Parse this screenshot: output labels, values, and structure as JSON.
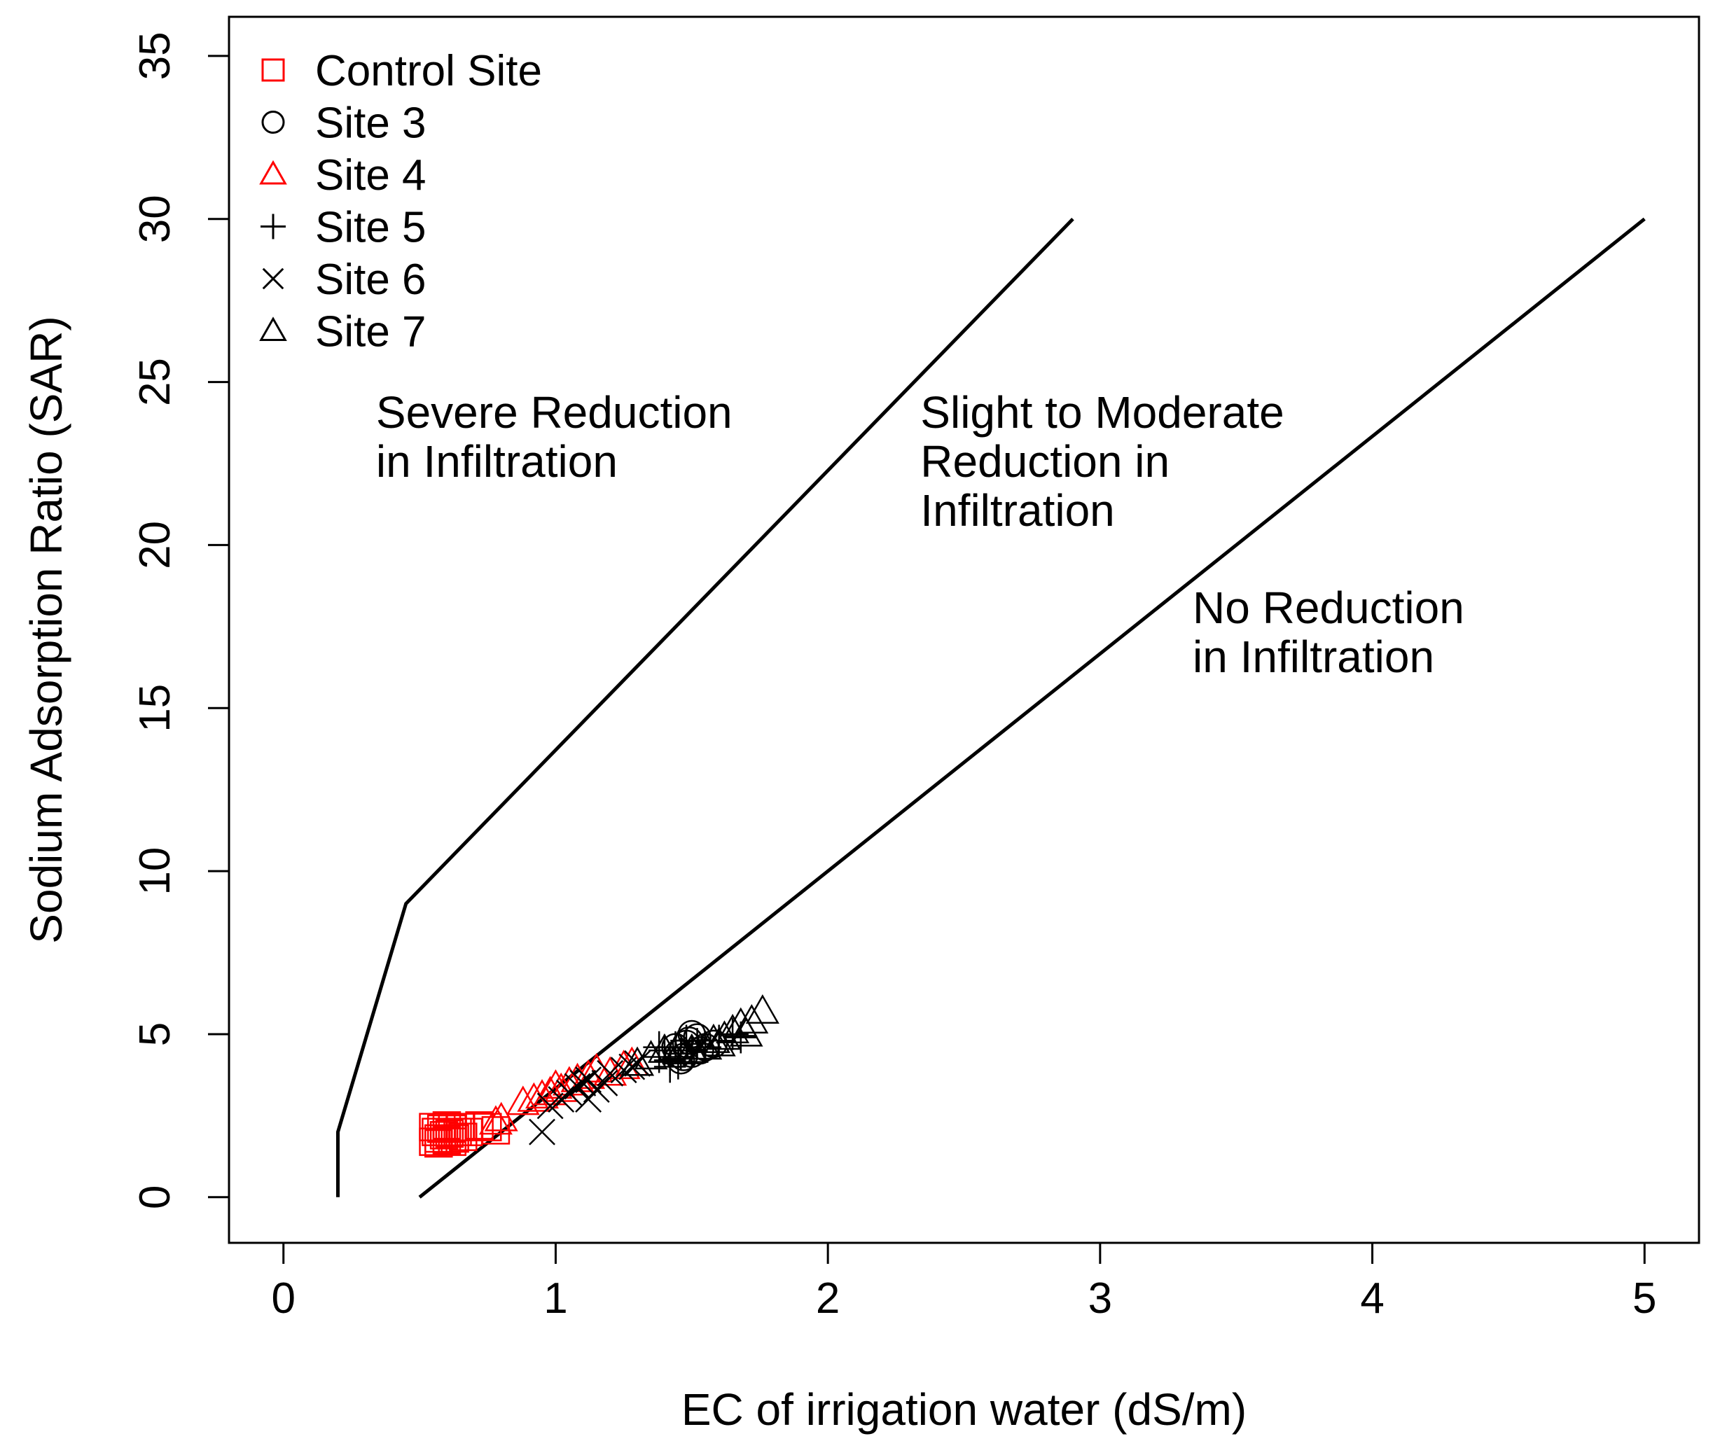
{
  "chart_data": {
    "type": "scatter",
    "title": "",
    "xlabel": "EC of irrigation water (dS/m)",
    "ylabel": "Sodium Adsorption Ratio (SAR)",
    "xlim": [
      -0.2,
      5.2
    ],
    "ylim": [
      -1.4,
      36.2
    ],
    "x_ticks": [
      0,
      1,
      2,
      3,
      4,
      5
    ],
    "y_ticks": [
      0,
      5,
      10,
      15,
      20,
      25,
      30,
      35
    ],
    "grid": false,
    "legend_position": "top-left",
    "colors": {
      "red": "#ff0000",
      "black": "#000000"
    },
    "boundaries": [
      {
        "name": "severe-boundary",
        "x": [
          0.2,
          0.2,
          0.45,
          2.9
        ],
        "y": [
          0,
          2,
          9,
          30
        ]
      },
      {
        "name": "no-reduction-boundary",
        "x": [
          0.5,
          5.0
        ],
        "y": [
          0,
          30
        ]
      }
    ],
    "annotations": [
      {
        "name": "severe-region",
        "lines": [
          "Severe Reduction",
          "in Infiltration"
        ],
        "x": 0.34,
        "y": 23.6
      },
      {
        "name": "moderate-region",
        "lines": [
          "Slight to Moderate",
          "Reduction in",
          "Infiltration"
        ],
        "x": 2.34,
        "y": 23.6
      },
      {
        "name": "none-region",
        "lines": [
          "No Reduction",
          "in Infiltration"
        ],
        "x": 3.34,
        "y": 17.6
      }
    ],
    "series": [
      {
        "name": "Control Site",
        "marker": "square",
        "color": "#ff0000",
        "points": [
          [
            0.55,
            1.7
          ],
          [
            0.56,
            2.0
          ],
          [
            0.57,
            1.8
          ],
          [
            0.58,
            2.1
          ],
          [
            0.59,
            1.9
          ],
          [
            0.6,
            1.75
          ],
          [
            0.6,
            2.2
          ],
          [
            0.61,
            1.95
          ],
          [
            0.62,
            2.1
          ],
          [
            0.63,
            1.8
          ],
          [
            0.64,
            2.0
          ],
          [
            0.65,
            2.15
          ],
          [
            0.66,
            1.85
          ],
          [
            0.68,
            2.0
          ],
          [
            0.55,
            2.15
          ],
          [
            0.57,
            1.65
          ],
          [
            0.72,
            2.2
          ],
          [
            0.75,
            2.15
          ],
          [
            0.78,
            2.05
          ],
          [
            0.62,
            1.7
          ]
        ]
      },
      {
        "name": "Site 3",
        "marker": "circle",
        "color": "#000000",
        "points": [
          [
            1.44,
            4.6
          ],
          [
            1.46,
            4.2
          ],
          [
            1.48,
            4.7
          ],
          [
            1.5,
            4.4
          ],
          [
            1.52,
            4.9
          ],
          [
            1.5,
            5.0
          ],
          [
            1.55,
            4.6
          ],
          [
            1.47,
            4.3
          ],
          [
            1.53,
            4.5
          ],
          [
            1.49,
            4.8
          ],
          [
            1.45,
            4.4
          ],
          [
            1.58,
            4.7
          ]
        ]
      },
      {
        "name": "Site 4",
        "marker": "triangle",
        "color": "#ff0000",
        "points": [
          [
            0.78,
            2.3
          ],
          [
            0.8,
            2.4
          ],
          [
            0.88,
            2.9
          ],
          [
            0.92,
            3.0
          ],
          [
            0.95,
            3.1
          ],
          [
            0.98,
            3.2
          ],
          [
            1.0,
            3.4
          ],
          [
            1.02,
            3.3
          ],
          [
            1.05,
            3.5
          ],
          [
            1.08,
            3.6
          ],
          [
            1.12,
            3.7
          ],
          [
            1.15,
            3.9
          ],
          [
            1.2,
            3.8
          ],
          [
            1.25,
            4.0
          ],
          [
            1.28,
            4.1
          ]
        ]
      },
      {
        "name": "Site 5",
        "marker": "plus",
        "color": "#000000",
        "points": [
          [
            1.38,
            4.3
          ],
          [
            1.4,
            4.5
          ],
          [
            1.42,
            4.2
          ],
          [
            1.44,
            4.6
          ],
          [
            1.46,
            4.4
          ],
          [
            1.48,
            4.8
          ],
          [
            1.5,
            4.5
          ],
          [
            1.52,
            4.7
          ],
          [
            1.42,
            4.0
          ],
          [
            1.45,
            4.1
          ],
          [
            1.38,
            4.6
          ],
          [
            1.55,
            4.6
          ],
          [
            1.6,
            4.8
          ],
          [
            1.65,
            5.0
          ],
          [
            1.68,
            4.9
          ]
        ]
      },
      {
        "name": "Site 6",
        "marker": "x",
        "color": "#000000",
        "points": [
          [
            0.95,
            2.0
          ],
          [
            0.98,
            2.8
          ],
          [
            1.02,
            3.0
          ],
          [
            1.05,
            3.2
          ],
          [
            1.08,
            3.4
          ],
          [
            1.1,
            3.5
          ],
          [
            1.12,
            3.6
          ],
          [
            1.15,
            3.3
          ],
          [
            1.18,
            3.5
          ],
          [
            1.2,
            3.8
          ],
          [
            1.25,
            3.9
          ],
          [
            1.28,
            4.0
          ],
          [
            1.3,
            4.1
          ],
          [
            1.12,
            3.0
          ]
        ]
      },
      {
        "name": "Site 7",
        "marker": "triangle",
        "color": "#000000",
        "points": [
          [
            1.3,
            4.1
          ],
          [
            1.35,
            4.3
          ],
          [
            1.4,
            4.5
          ],
          [
            1.45,
            4.6
          ],
          [
            1.5,
            4.5
          ],
          [
            1.55,
            4.6
          ],
          [
            1.58,
            4.8
          ],
          [
            1.6,
            4.7
          ],
          [
            1.62,
            4.9
          ],
          [
            1.65,
            5.1
          ],
          [
            1.68,
            5.3
          ],
          [
            1.7,
            5.0
          ],
          [
            1.72,
            5.4
          ],
          [
            1.76,
            5.7
          ]
        ]
      }
    ]
  }
}
